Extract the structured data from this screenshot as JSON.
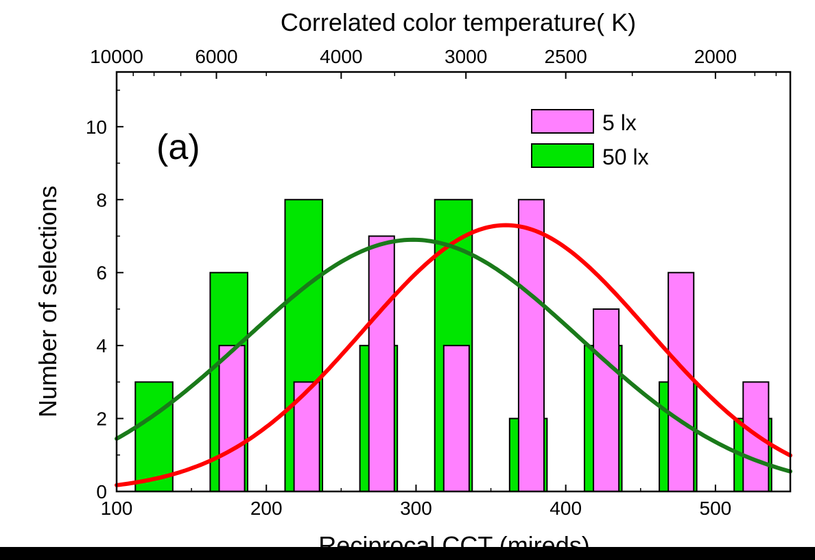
{
  "chart_data": {
    "type": "bar",
    "panel_label": "(a)",
    "xlabel": "Reciprocal CCT (mireds)",
    "ylabel": "Number of selections",
    "top_axis_label": "Correlated color temperature( K)",
    "xlim": [
      100,
      550
    ],
    "ylim": [
      0,
      11.5
    ],
    "x_ticks": [
      100,
      200,
      300,
      400,
      500
    ],
    "y_ticks": [
      0,
      2,
      4,
      6,
      8,
      10
    ],
    "top_ticks_K": [
      10000,
      6000,
      4000,
      3000,
      2500,
      2000
    ],
    "grid": false,
    "legend_position": "top-right",
    "series": [
      {
        "name": "5 lx",
        "color": "#ff80ff",
        "x": [
          177,
          227,
          277,
          327,
          377,
          427,
          477,
          527
        ],
        "values": [
          4,
          3,
          7,
          4,
          8,
          5,
          6,
          3
        ]
      },
      {
        "name": "50 lx",
        "color": "#00e600",
        "x": [
          125,
          175,
          225,
          275,
          325,
          375,
          425,
          475,
          525
        ],
        "values": [
          3,
          6,
          8,
          4,
          8,
          2,
          4,
          3,
          2
        ]
      }
    ],
    "fits": [
      {
        "series": "5 lx",
        "type": "gaussian",
        "color": "#ff0000",
        "center": 360,
        "amplitude": 7.3,
        "sigma": 95
      },
      {
        "series": "50 lx",
        "type": "gaussian",
        "color": "#1a7a1a",
        "center": 298,
        "amplitude": 6.9,
        "sigma": 112
      }
    ]
  }
}
